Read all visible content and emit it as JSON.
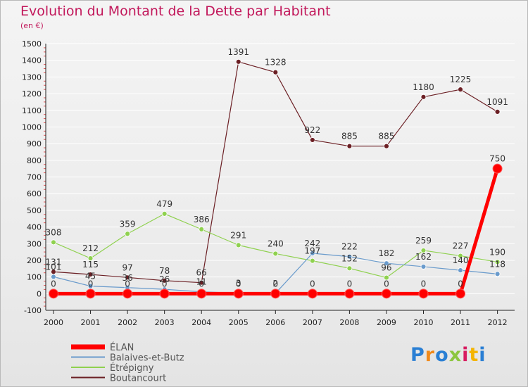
{
  "title": "Evolution du Montant de la Dette par Habitant",
  "subtitle": "(en €)",
  "logo": {
    "text": "Proxiti",
    "colors": [
      "#2a7fd4",
      "#f08a1c",
      "#2a7fd4",
      "#8cc63f",
      "#d81b60",
      "#f4b400",
      "#2a7fd4"
    ]
  },
  "chart_data": {
    "type": "line",
    "title": "Evolution du Montant de la Dette par Habitant",
    "subtitle": "(en €)",
    "xlabel": "",
    "ylabel": "",
    "ylim": [
      -100,
      1500
    ],
    "y_ticks": [
      -100,
      0,
      100,
      200,
      300,
      400,
      500,
      600,
      700,
      800,
      900,
      1000,
      1100,
      1200,
      1300,
      1400,
      1500
    ],
    "grid": "horizontal",
    "legend_position": "bottom-left",
    "categories": [
      "2000",
      "2001",
      "2002",
      "2003",
      "2004",
      "2005",
      "2006",
      "2007",
      "2008",
      "2009",
      "2010",
      "2011",
      "2012"
    ],
    "series": [
      {
        "name": "Boutancourt",
        "color": "#6b1f24",
        "line_width": 1.2,
        "marker_radius": 3.5,
        "values": [
          131,
          115,
          97,
          78,
          66,
          1391,
          1328,
          922,
          885,
          885,
          1180,
          1225,
          1091
        ],
        "labels": [
          "131",
          "115",
          "97",
          "78",
          "66",
          "1391",
          "1328",
          "922",
          "885",
          "885",
          "1180",
          "1225",
          "1091"
        ]
      },
      {
        "name": "Étrépigny",
        "color": "#8fd14f",
        "line_width": 1.2,
        "marker_radius": 3.5,
        "values": [
          308,
          212,
          359,
          479,
          386,
          291,
          240,
          197,
          152,
          96,
          259,
          227,
          190
        ],
        "labels": [
          "308",
          "212",
          "359",
          "479",
          "386",
          "291",
          "240",
          "197",
          "152",
          "96",
          "259",
          "227",
          "190"
        ]
      },
      {
        "name": "Balaives-et-Butz",
        "color": "#6a9bcc",
        "line_width": 1.2,
        "marker_radius": 3.5,
        "values": [
          101,
          45,
          36,
          26,
          11,
          3,
          2,
          242,
          222,
          182,
          162,
          140,
          118
        ],
        "labels": [
          "101",
          "45",
          "36",
          "26",
          "11",
          "3",
          "2",
          "242",
          "222",
          "182",
          "162",
          "140",
          "118"
        ]
      },
      {
        "name": "ÉLAN",
        "color": "#ff0000",
        "line_width": 5,
        "marker_radius": 6.5,
        "values": [
          0,
          0,
          0,
          0,
          0,
          0,
          0,
          0,
          0,
          0,
          0,
          0,
          750
        ],
        "labels": [
          "0",
          "0",
          "0",
          "0",
          "0",
          "0",
          "0",
          "0",
          "0",
          "0",
          "0",
          "0",
          "750"
        ]
      }
    ],
    "legend": [
      "ÉLAN",
      "Balaives-et-Butz",
      "Étrépigny",
      "Boutancourt"
    ]
  }
}
